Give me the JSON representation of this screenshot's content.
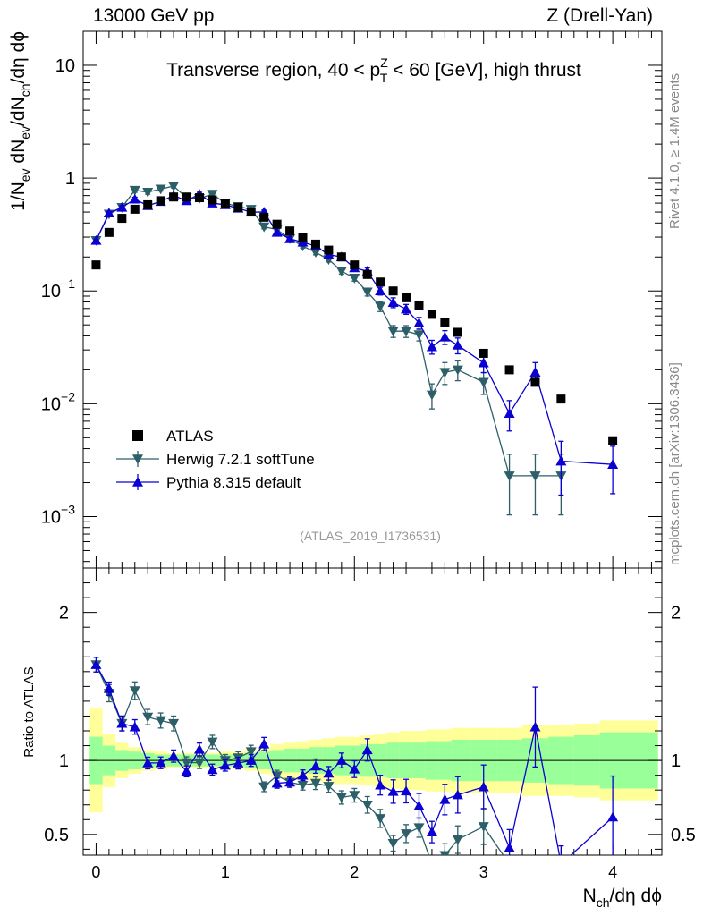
{
  "header": {
    "left": "13000 GeV pp",
    "right": "Z (Drell-Yan)"
  },
  "side_labels": {
    "rivet": "Rivet 4.1.0, ≥ 1.4M events",
    "mcplots": "mcplots.cern.ch [arXiv:1306.3436]"
  },
  "chart_data": {
    "type": "scatter",
    "title": "Transverse region, 40 < p_T^Z < 60 [GeV], high thrust",
    "title_main": "Transverse region, 40 < p",
    "title_sup": "Z",
    "title_sub": "T",
    "title_tail": " < 60 [GeV], high thrust",
    "analysis_id": "(ATLAS_2019_I1736531)",
    "xlabel": "N_ch/dη dϕ",
    "xlabel_main": "N",
    "xlabel_sub": "ch",
    "xlabel_tail": "/dη dϕ",
    "ylabel": "1/N_ev dN_ev/dN_ch/dη dϕ",
    "ylabel_parts": [
      {
        "t": "1/N",
        "s": false
      },
      {
        "t": "ev",
        "s": true
      },
      {
        "t": " dN",
        "s": false
      },
      {
        "t": "ev",
        "s": true
      },
      {
        "t": "/dN",
        "s": false
      },
      {
        "t": "ch",
        "s": true
      },
      {
        "t": "/dη dϕ",
        "s": false
      }
    ],
    "ratio_ylabel": "Ratio to ATLAS",
    "xlim": [
      -0.1,
      4.38
    ],
    "ylim": [
      0.00035,
      20
    ],
    "ratio_ylim": [
      0.36,
      2.3
    ],
    "x_ticks": [
      "0",
      "1",
      "2",
      "3",
      "4"
    ],
    "y_ticks": [
      {
        "value": 10,
        "base": "10",
        "exp": ""
      },
      {
        "value": 1,
        "base": "1",
        "exp": ""
      },
      {
        "value": 0.1,
        "base": "10",
        "exp": "−1"
      },
      {
        "value": 0.01,
        "base": "10",
        "exp": "−2"
      },
      {
        "value": 0.001,
        "base": "10",
        "exp": "−3"
      }
    ],
    "ratio_y_ticks": [
      "0.5",
      "1",
      "2"
    ],
    "legend": {
      "placement": "bottom-left",
      "entries": [
        "ATLAS",
        "Herwig 7.2.1 softTune",
        "Pythia 8.315 default"
      ]
    },
    "colors": {
      "data": "#000000",
      "herwig": "#2c5f68",
      "pythia": "#0a00d2",
      "band_inner": "#99ff99",
      "band_outer": "#ffff99"
    },
    "series": [
      {
        "name": "ATLAS",
        "x": [
          0.0,
          0.1,
          0.2,
          0.3,
          0.4,
          0.5,
          0.6,
          0.7,
          0.8,
          0.9,
          1.0,
          1.1,
          1.2,
          1.3,
          1.4,
          1.5,
          1.6,
          1.7,
          1.8,
          1.9,
          2.0,
          2.1,
          2.2,
          2.3,
          2.4,
          2.5,
          2.6,
          2.7,
          2.8,
          3.0,
          3.2,
          3.4,
          3.6,
          4.0
        ],
        "values": [
          0.17,
          0.33,
          0.44,
          0.53,
          0.58,
          0.63,
          0.68,
          0.68,
          0.67,
          0.64,
          0.6,
          0.55,
          0.5,
          0.45,
          0.39,
          0.34,
          0.3,
          0.26,
          0.23,
          0.2,
          0.17,
          0.14,
          0.12,
          0.1,
          0.087,
          0.075,
          0.062,
          0.053,
          0.043,
          0.028,
          0.02,
          0.0155,
          0.011,
          0.0047
        ]
      },
      {
        "name": "Herwig 7.2.1 softTune",
        "x": [
          0.0,
          0.1,
          0.2,
          0.3,
          0.4,
          0.5,
          0.6,
          0.7,
          0.8,
          0.9,
          1.0,
          1.1,
          1.2,
          1.3,
          1.4,
          1.5,
          1.6,
          1.7,
          1.8,
          1.9,
          2.0,
          2.1,
          2.2,
          2.3,
          2.4,
          2.5,
          2.6,
          2.7,
          2.8,
          3.0,
          3.2,
          3.4,
          3.6
        ],
        "values": [
          0.28,
          0.48,
          0.55,
          0.78,
          0.75,
          0.8,
          0.85,
          0.67,
          0.66,
          0.72,
          0.6,
          0.56,
          0.53,
          0.37,
          0.35,
          0.29,
          0.25,
          0.22,
          0.19,
          0.15,
          0.13,
          0.098,
          0.073,
          0.044,
          0.044,
          0.041,
          0.012,
          0.019,
          0.02,
          0.0155,
          0.0023,
          0.0023,
          0.0023
        ],
        "errors": [
          0.03,
          0.04,
          0.04,
          0.04,
          0.04,
          0.04,
          0.04,
          0.04,
          0.04,
          0.04,
          0.04,
          0.04,
          0.04,
          0.04,
          0.04,
          0.04,
          0.04,
          0.05,
          0.05,
          0.06,
          0.06,
          0.08,
          0.1,
          0.12,
          0.12,
          0.12,
          0.25,
          0.22,
          0.2,
          0.22,
          0.55,
          0.55,
          0.55
        ]
      },
      {
        "name": "Pythia 8.315 default",
        "x": [
          0.0,
          0.1,
          0.2,
          0.3,
          0.4,
          0.5,
          0.6,
          0.7,
          0.8,
          0.9,
          1.0,
          1.1,
          1.2,
          1.3,
          1.4,
          1.5,
          1.6,
          1.7,
          1.8,
          1.9,
          2.0,
          2.1,
          2.2,
          2.3,
          2.4,
          2.5,
          2.6,
          2.7,
          2.8,
          3.0,
          3.2,
          3.4,
          3.6,
          4.0
        ],
        "values": [
          0.28,
          0.49,
          0.55,
          0.65,
          0.57,
          0.62,
          0.7,
          0.63,
          0.72,
          0.6,
          0.58,
          0.54,
          0.5,
          0.5,
          0.33,
          0.29,
          0.27,
          0.25,
          0.21,
          0.2,
          0.16,
          0.15,
          0.1,
          0.079,
          0.069,
          0.052,
          0.032,
          0.039,
          0.033,
          0.023,
          0.0082,
          0.019,
          0.0031,
          0.0029
        ],
        "errors": [
          0.03,
          0.03,
          0.04,
          0.04,
          0.04,
          0.04,
          0.04,
          0.04,
          0.04,
          0.04,
          0.04,
          0.04,
          0.04,
          0.04,
          0.04,
          0.04,
          0.04,
          0.05,
          0.05,
          0.05,
          0.06,
          0.07,
          0.08,
          0.1,
          0.1,
          0.12,
          0.14,
          0.14,
          0.16,
          0.18,
          0.3,
          0.22,
          0.5,
          0.45
        ]
      }
    ],
    "ratio_band": {
      "x_edges": [
        -0.05,
        0.05,
        0.15,
        0.25,
        0.35,
        0.45,
        0.55,
        0.65,
        0.75,
        0.85,
        0.95,
        1.05,
        1.15,
        1.25,
        1.35,
        1.45,
        1.55,
        1.65,
        1.75,
        1.85,
        1.95,
        2.05,
        2.15,
        2.25,
        2.35,
        2.45,
        2.55,
        2.65,
        2.75,
        2.9,
        3.1,
        3.3,
        3.5,
        3.7,
        3.9,
        4.35
      ],
      "inner": [
        0.16,
        0.1,
        0.07,
        0.06,
        0.05,
        0.04,
        0.04,
        0.04,
        0.04,
        0.04,
        0.04,
        0.04,
        0.05,
        0.06,
        0.07,
        0.08,
        0.08,
        0.09,
        0.09,
        0.1,
        0.1,
        0.11,
        0.11,
        0.12,
        0.12,
        0.12,
        0.13,
        0.13,
        0.14,
        0.14,
        0.14,
        0.15,
        0.16,
        0.17,
        0.19
      ],
      "outer": [
        0.35,
        0.18,
        0.12,
        0.09,
        0.07,
        0.06,
        0.05,
        0.05,
        0.05,
        0.05,
        0.06,
        0.06,
        0.07,
        0.09,
        0.11,
        0.12,
        0.13,
        0.14,
        0.15,
        0.16,
        0.16,
        0.17,
        0.18,
        0.19,
        0.2,
        0.2,
        0.21,
        0.21,
        0.22,
        0.22,
        0.22,
        0.24,
        0.24,
        0.25,
        0.27
      ]
    }
  }
}
